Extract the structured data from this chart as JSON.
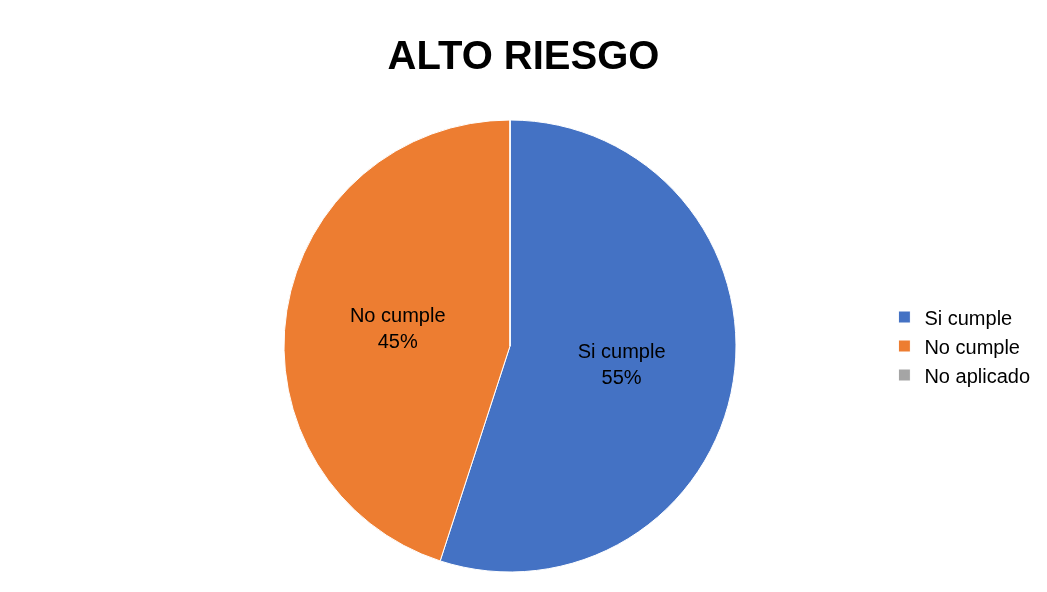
{
  "chart_data": {
    "type": "pie",
    "title": "ALTO RIESGO",
    "categories": [
      "Si cumple",
      "No cumple",
      "No aplicado"
    ],
    "values": [
      55,
      45,
      0
    ],
    "value_labels": [
      "55%",
      "45%",
      null
    ],
    "colors": [
      "#4472c4",
      "#ed7d31",
      "#a5a5a5"
    ],
    "legend": "right"
  }
}
